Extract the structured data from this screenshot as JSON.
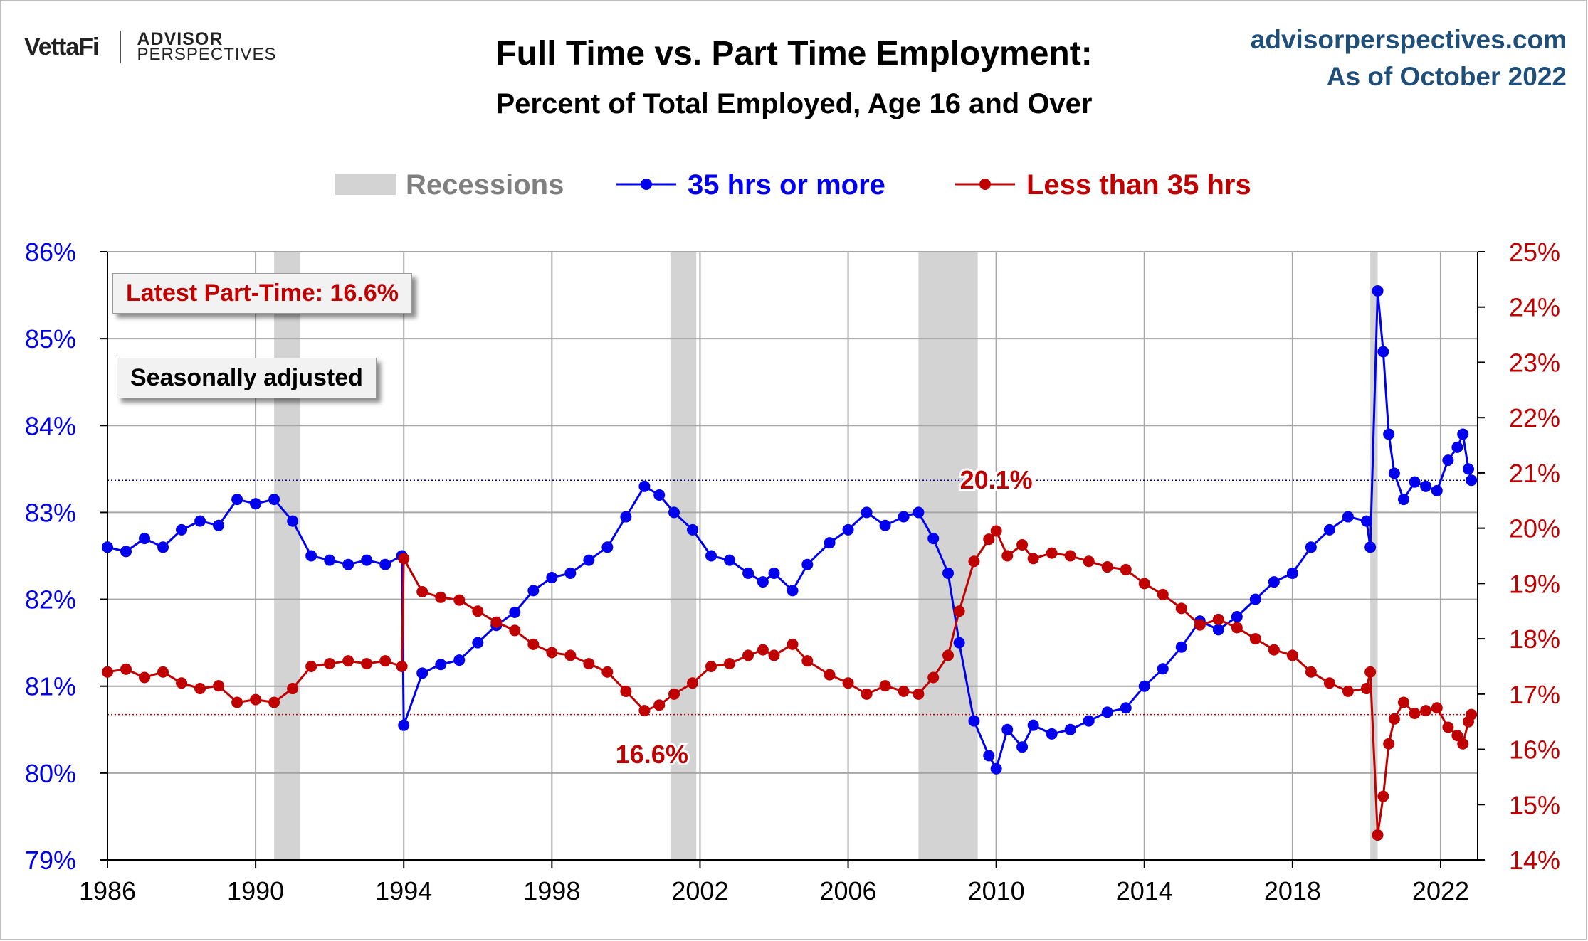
{
  "header": {
    "logo_vettafi": "VettaFi",
    "logo_advisor": "ADVISOR",
    "logo_perspectives": "PERSPECTIVES",
    "title": "Full Time vs. Part Time Employment:",
    "subtitle": "Percent of Total Employed, Age 16 and Over",
    "site": "advisorperspectives.com",
    "as_of": "As of October 2022"
  },
  "callouts": {
    "latest": "Latest Part-Time: 16.6%",
    "seasonal": "Seasonally adjusted"
  },
  "colors": {
    "full_time": "#0000ee",
    "part_time": "#c00000",
    "recession": "#d3d3d3",
    "grid": "#a6a6a6"
  },
  "chart_data": {
    "type": "line",
    "legend": [
      "Recessions",
      "35 hrs or more",
      "Less than 35 hrs"
    ],
    "legend_position": "top-center",
    "x_range": [
      1986,
      2023
    ],
    "x_ticks": [
      "1986",
      "1990",
      "1994",
      "1998",
      "2002",
      "2006",
      "2010",
      "2014",
      "2018",
      "2022"
    ],
    "y_left": {
      "range": [
        79,
        86
      ],
      "ticks": [
        "79%",
        "80%",
        "81%",
        "82%",
        "83%",
        "84%",
        "85%",
        "86%"
      ],
      "color": "#0000ee"
    },
    "y_right": {
      "range": [
        14,
        25
      ],
      "ticks": [
        "14%",
        "15%",
        "16%",
        "17%",
        "18%",
        "19%",
        "20%",
        "21%",
        "22%",
        "23%",
        "24%",
        "25%"
      ],
      "color": "#c00000"
    },
    "grid": true,
    "recessions": [
      [
        1990.5,
        1991.2
      ],
      [
        2001.2,
        2001.9
      ],
      [
        2007.9,
        2009.5
      ],
      [
        2020.1,
        2020.3
      ]
    ],
    "reference_lines": [
      {
        "axis": "left",
        "value": 83.37,
        "color": "#00008b"
      },
      {
        "axis": "right",
        "value": 16.63,
        "color": "#c00000"
      }
    ],
    "annotations": [
      {
        "text": "20.1%",
        "x": 2010.0,
        "axis": "right",
        "y": 20.1
      },
      {
        "text": "16.6%",
        "x": 2000.7,
        "axis": "right",
        "y": 16.6
      }
    ],
    "series": [
      {
        "name": "35 hrs or more",
        "axis": "left",
        "points": [
          [
            1986.0,
            82.6
          ],
          [
            1986.5,
            82.55
          ],
          [
            1987.0,
            82.7
          ],
          [
            1987.5,
            82.6
          ],
          [
            1988.0,
            82.8
          ],
          [
            1988.5,
            82.9
          ],
          [
            1989.0,
            82.85
          ],
          [
            1989.5,
            83.15
          ],
          [
            1990.0,
            83.1
          ],
          [
            1990.5,
            83.15
          ],
          [
            1991.0,
            82.9
          ],
          [
            1991.5,
            82.5
          ],
          [
            1992.0,
            82.45
          ],
          [
            1992.5,
            82.4
          ],
          [
            1993.0,
            82.45
          ],
          [
            1993.5,
            82.4
          ],
          [
            1993.95,
            82.5
          ],
          [
            1994.0,
            80.55
          ],
          [
            1994.5,
            81.15
          ],
          [
            1995.0,
            81.25
          ],
          [
            1995.5,
            81.3
          ],
          [
            1996.0,
            81.5
          ],
          [
            1996.5,
            81.7
          ],
          [
            1997.0,
            81.85
          ],
          [
            1997.5,
            82.1
          ],
          [
            1998.0,
            82.25
          ],
          [
            1998.5,
            82.3
          ],
          [
            1999.0,
            82.45
          ],
          [
            1999.5,
            82.6
          ],
          [
            2000.0,
            82.95
          ],
          [
            2000.5,
            83.3
          ],
          [
            2000.9,
            83.2
          ],
          [
            2001.3,
            83.0
          ],
          [
            2001.8,
            82.8
          ],
          [
            2002.3,
            82.5
          ],
          [
            2002.8,
            82.45
          ],
          [
            2003.3,
            82.3
          ],
          [
            2003.7,
            82.2
          ],
          [
            2004.0,
            82.3
          ],
          [
            2004.5,
            82.1
          ],
          [
            2004.9,
            82.4
          ],
          [
            2005.5,
            82.65
          ],
          [
            2006.0,
            82.8
          ],
          [
            2006.5,
            83.0
          ],
          [
            2007.0,
            82.85
          ],
          [
            2007.5,
            82.95
          ],
          [
            2007.9,
            83.0
          ],
          [
            2008.3,
            82.7
          ],
          [
            2008.7,
            82.3
          ],
          [
            2009.0,
            81.5
          ],
          [
            2009.4,
            80.6
          ],
          [
            2009.8,
            80.2
          ],
          [
            2010.0,
            80.05
          ],
          [
            2010.3,
            80.5
          ],
          [
            2010.7,
            80.3
          ],
          [
            2011.0,
            80.55
          ],
          [
            2011.5,
            80.45
          ],
          [
            2012.0,
            80.5
          ],
          [
            2012.5,
            80.6
          ],
          [
            2013.0,
            80.7
          ],
          [
            2013.5,
            80.75
          ],
          [
            2014.0,
            81.0
          ],
          [
            2014.5,
            81.2
          ],
          [
            2015.0,
            81.45
          ],
          [
            2015.5,
            81.75
          ],
          [
            2016.0,
            81.65
          ],
          [
            2016.5,
            81.8
          ],
          [
            2017.0,
            82.0
          ],
          [
            2017.5,
            82.2
          ],
          [
            2018.0,
            82.3
          ],
          [
            2018.5,
            82.6
          ],
          [
            2019.0,
            82.8
          ],
          [
            2019.5,
            82.95
          ],
          [
            2020.0,
            82.9
          ],
          [
            2020.1,
            82.6
          ],
          [
            2020.3,
            85.55
          ],
          [
            2020.45,
            84.85
          ],
          [
            2020.6,
            83.9
          ],
          [
            2020.75,
            83.45
          ],
          [
            2021.0,
            83.15
          ],
          [
            2021.3,
            83.35
          ],
          [
            2021.6,
            83.3
          ],
          [
            2021.9,
            83.25
          ],
          [
            2022.2,
            83.6
          ],
          [
            2022.45,
            83.75
          ],
          [
            2022.6,
            83.9
          ],
          [
            2022.75,
            83.5
          ],
          [
            2022.83,
            83.37
          ]
        ]
      },
      {
        "name": "Less than 35 hrs",
        "axis": "right",
        "points": [
          [
            1986.0,
            17.4
          ],
          [
            1986.5,
            17.45
          ],
          [
            1987.0,
            17.3
          ],
          [
            1987.5,
            17.4
          ],
          [
            1988.0,
            17.2
          ],
          [
            1988.5,
            17.1
          ],
          [
            1989.0,
            17.15
          ],
          [
            1989.5,
            16.85
          ],
          [
            1990.0,
            16.9
          ],
          [
            1990.5,
            16.85
          ],
          [
            1991.0,
            17.1
          ],
          [
            1991.5,
            17.5
          ],
          [
            1992.0,
            17.55
          ],
          [
            1992.5,
            17.6
          ],
          [
            1993.0,
            17.55
          ],
          [
            1993.5,
            17.6
          ],
          [
            1993.95,
            17.5
          ],
          [
            1994.0,
            19.45
          ],
          [
            1994.5,
            18.85
          ],
          [
            1995.0,
            18.75
          ],
          [
            1995.5,
            18.7
          ],
          [
            1996.0,
            18.5
          ],
          [
            1996.5,
            18.3
          ],
          [
            1997.0,
            18.15
          ],
          [
            1997.5,
            17.9
          ],
          [
            1998.0,
            17.75
          ],
          [
            1998.5,
            17.7
          ],
          [
            1999.0,
            17.55
          ],
          [
            1999.5,
            17.4
          ],
          [
            2000.0,
            17.05
          ],
          [
            2000.5,
            16.7
          ],
          [
            2000.9,
            16.8
          ],
          [
            2001.3,
            17.0
          ],
          [
            2001.8,
            17.2
          ],
          [
            2002.3,
            17.5
          ],
          [
            2002.8,
            17.55
          ],
          [
            2003.3,
            17.7
          ],
          [
            2003.7,
            17.8
          ],
          [
            2004.0,
            17.7
          ],
          [
            2004.5,
            17.9
          ],
          [
            2004.9,
            17.6
          ],
          [
            2005.5,
            17.35
          ],
          [
            2006.0,
            17.2
          ],
          [
            2006.5,
            17.0
          ],
          [
            2007.0,
            17.15
          ],
          [
            2007.5,
            17.05
          ],
          [
            2007.9,
            17.0
          ],
          [
            2008.3,
            17.3
          ],
          [
            2008.7,
            17.7
          ],
          [
            2009.0,
            18.5
          ],
          [
            2009.4,
            19.4
          ],
          [
            2009.8,
            19.8
          ],
          [
            2010.0,
            19.95
          ],
          [
            2010.3,
            19.5
          ],
          [
            2010.7,
            19.7
          ],
          [
            2011.0,
            19.45
          ],
          [
            2011.5,
            19.55
          ],
          [
            2012.0,
            19.5
          ],
          [
            2012.5,
            19.4
          ],
          [
            2013.0,
            19.3
          ],
          [
            2013.5,
            19.25
          ],
          [
            2014.0,
            19.0
          ],
          [
            2014.5,
            18.8
          ],
          [
            2015.0,
            18.55
          ],
          [
            2015.5,
            18.25
          ],
          [
            2016.0,
            18.35
          ],
          [
            2016.5,
            18.2
          ],
          [
            2017.0,
            18.0
          ],
          [
            2017.5,
            17.8
          ],
          [
            2018.0,
            17.7
          ],
          [
            2018.5,
            17.4
          ],
          [
            2019.0,
            17.2
          ],
          [
            2019.5,
            17.05
          ],
          [
            2020.0,
            17.1
          ],
          [
            2020.1,
            17.4
          ],
          [
            2020.3,
            14.45
          ],
          [
            2020.45,
            15.15
          ],
          [
            2020.6,
            16.1
          ],
          [
            2020.75,
            16.55
          ],
          [
            2021.0,
            16.85
          ],
          [
            2021.3,
            16.65
          ],
          [
            2021.6,
            16.7
          ],
          [
            2021.9,
            16.75
          ],
          [
            2022.2,
            16.4
          ],
          [
            2022.45,
            16.25
          ],
          [
            2022.6,
            16.1
          ],
          [
            2022.75,
            16.5
          ],
          [
            2022.83,
            16.63
          ]
        ]
      }
    ]
  }
}
